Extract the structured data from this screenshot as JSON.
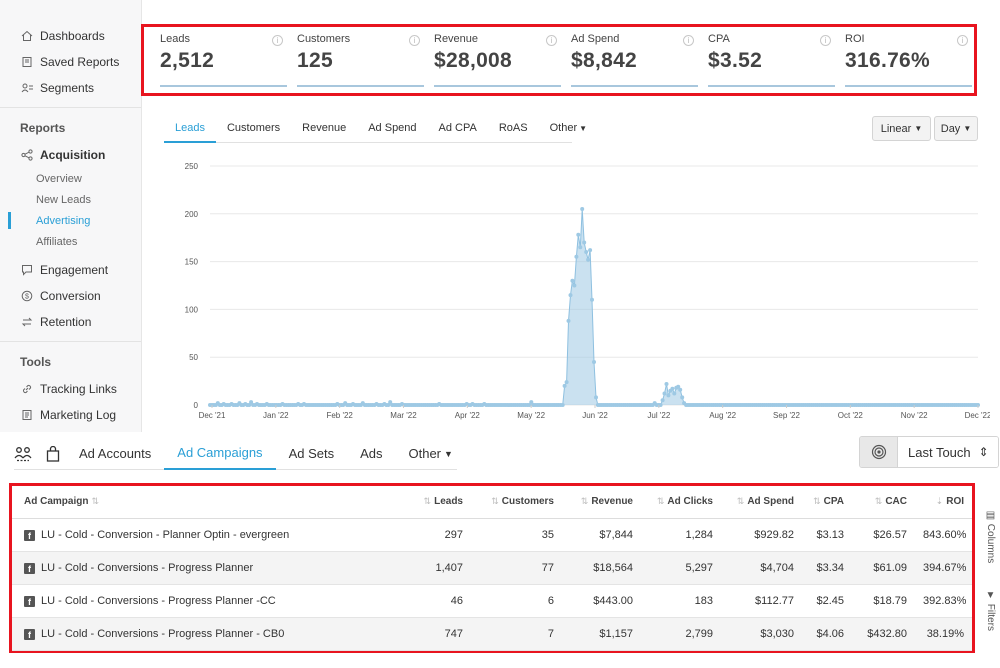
{
  "sidebar": {
    "top": [
      {
        "label": "Dashboards",
        "icon": "home-icon"
      },
      {
        "label": "Saved Reports",
        "icon": "saved-icon"
      },
      {
        "label": "Segments",
        "icon": "segments-icon"
      }
    ],
    "reports_heading": "Reports",
    "acquisition": "Acquisition",
    "acq_sub": [
      "Overview",
      "New Leads",
      "Advertising",
      "Affiliates"
    ],
    "reports_items": [
      {
        "label": "Engagement",
        "icon": "chat-icon"
      },
      {
        "label": "Conversion",
        "icon": "dollar-icon"
      },
      {
        "label": "Retention",
        "icon": "retention-icon"
      }
    ],
    "tools_heading": "Tools",
    "tools_items": [
      {
        "label": "Tracking Links",
        "icon": "link-icon"
      },
      {
        "label": "Marketing Log",
        "icon": "log-icon"
      }
    ]
  },
  "kpis": [
    {
      "label": "Leads",
      "value": "2,512"
    },
    {
      "label": "Customers",
      "value": "125"
    },
    {
      "label": "Revenue",
      "value": "$28,008"
    },
    {
      "label": "Ad Spend",
      "value": "$8,842"
    },
    {
      "label": "CPA",
      "value": "$3.52"
    },
    {
      "label": "ROI",
      "value": "316.76%"
    }
  ],
  "chart_tabs": [
    "Leads",
    "Customers",
    "Revenue",
    "Ad Spend",
    "Ad CPA",
    "RoAS",
    "Other"
  ],
  "scale_dropdown": "Linear",
  "interval_dropdown": "Day",
  "chart_data": {
    "type": "area",
    "series": [
      {
        "values": [
          0,
          0,
          0,
          0,
          2,
          0,
          0,
          1,
          0,
          0,
          0,
          1,
          0,
          0,
          0,
          2,
          0,
          0,
          1,
          0,
          0,
          3,
          0,
          0,
          1,
          0,
          0,
          0,
          0,
          1,
          0,
          0,
          0,
          0,
          0,
          0,
          0,
          1,
          0,
          0,
          0,
          0,
          0,
          0,
          0,
          1,
          0,
          0,
          1,
          0,
          0,
          0,
          0,
          0,
          0,
          0,
          0,
          0,
          0,
          0,
          0,
          0,
          0,
          0,
          0,
          1,
          0,
          0,
          0,
          2,
          0,
          0,
          0,
          1,
          0,
          0,
          0,
          0,
          2,
          0,
          0,
          0,
          0,
          0,
          0,
          1,
          0,
          0,
          0,
          1,
          0,
          0,
          3,
          0,
          0,
          0,
          0,
          0,
          1,
          0,
          0,
          0,
          0,
          0,
          0,
          0,
          0,
          0,
          0,
          0,
          0,
          0,
          0,
          0,
          0,
          0,
          0,
          1,
          0,
          0,
          0,
          0,
          0,
          0,
          0,
          0,
          0,
          0,
          0,
          0,
          0,
          1,
          0,
          0,
          1,
          0,
          0,
          0,
          0,
          0,
          1,
          0,
          0,
          0,
          0,
          0,
          0,
          0,
          0,
          0,
          0,
          0,
          0,
          0,
          0,
          0,
          0,
          0,
          0,
          0,
          0,
          0,
          0,
          0,
          3,
          0,
          0,
          0,
          0,
          0,
          0,
          0,
          0,
          0,
          0,
          0,
          0,
          0,
          0,
          0,
          0,
          20,
          24,
          88,
          115,
          130,
          125,
          155,
          178,
          165,
          205,
          170,
          160,
          152,
          162,
          110,
          45,
          8,
          0,
          0,
          0,
          0,
          0,
          0,
          0,
          0,
          0,
          0,
          0,
          0,
          0,
          0,
          0,
          0,
          0,
          0,
          0,
          0,
          0,
          0,
          0,
          0,
          0,
          0,
          0,
          0,
          0,
          2,
          0,
          0,
          0,
          5,
          12,
          22,
          10,
          15,
          17,
          12,
          18,
          19,
          16,
          8,
          2,
          0,
          0,
          0,
          0,
          0,
          0,
          0,
          0,
          0,
          0,
          0,
          0,
          0,
          0,
          0,
          0,
          0,
          0,
          0,
          0,
          0,
          0,
          0,
          0,
          0,
          0,
          0,
          0,
          0,
          0,
          0,
          0,
          0,
          0,
          0,
          0,
          0,
          0,
          0,
          0,
          0,
          0,
          0,
          0,
          0,
          0,
          0,
          0,
          0,
          0,
          0,
          0,
          0,
          0,
          0,
          0,
          0,
          0,
          0,
          0,
          0,
          0,
          0,
          0,
          0,
          0,
          0,
          0,
          0,
          0,
          0,
          0,
          0,
          0,
          0,
          0,
          0,
          0,
          0,
          0,
          0,
          0,
          0,
          0,
          0,
          0,
          0,
          0,
          0,
          0,
          0,
          0,
          0,
          0,
          0,
          0,
          0,
          0,
          0,
          0,
          0,
          0,
          0,
          0,
          0,
          0,
          0,
          0,
          0,
          0,
          0,
          0,
          0,
          0,
          0,
          0,
          0,
          0,
          0,
          0,
          0,
          0,
          0,
          0,
          0,
          0,
          0,
          0,
          0,
          0,
          0,
          0,
          0,
          0,
          0,
          0,
          0,
          0,
          0,
          0,
          0,
          0,
          0,
          0,
          0,
          0,
          0,
          0,
          0,
          0
        ]
      }
    ],
    "x_ticks": [
      "Dec '21",
      "Jan '22",
      "Feb '22",
      "Mar '22",
      "Apr '22",
      "May '22",
      "Jun '22",
      "Jul '22",
      "Aug '22",
      "Sep '22",
      "Oct '22",
      "Nov '22",
      "Dec '22"
    ],
    "y_ticks": [
      0,
      50,
      100,
      150,
      200,
      250
    ],
    "ylim": [
      0,
      250
    ],
    "grid": true,
    "color": "#9ec9e4"
  },
  "table_tabs": {
    "icons": [
      "people-icon",
      "bag-icon"
    ],
    "tabs": [
      "Ad Accounts",
      "Ad Campaigns",
      "Ad Sets",
      "Ads",
      "Other"
    ],
    "active": 1
  },
  "attribution": "Last Touch",
  "table": {
    "headers": [
      "Ad Campaign",
      "Leads",
      "Customers",
      "Revenue",
      "Ad Clicks",
      "Ad Spend",
      "CPA",
      "CAC",
      "ROI"
    ],
    "rows": [
      [
        "LU - Cold - Conversion - Planner Optin - evergreen",
        "297",
        "35",
        "$7,844",
        "1,284",
        "$929.82",
        "$3.13",
        "$26.57",
        "843.60%"
      ],
      [
        "LU - Cold - Conversions - Progress Planner",
        "1,407",
        "77",
        "$18,564",
        "5,297",
        "$4,704",
        "$3.34",
        "$61.09",
        "394.67%"
      ],
      [
        "LU - Cold - Conversions - Progress Planner -CC",
        "46",
        "6",
        "$443.00",
        "183",
        "$112.77",
        "$2.45",
        "$18.79",
        "392.83%"
      ],
      [
        "LU - Cold - Conversions - Progress Planner - CB0",
        "747",
        "7",
        "$1,157",
        "2,799",
        "$3,030",
        "$4.06",
        "$432.80",
        "38.19%"
      ]
    ]
  },
  "side_tools": {
    "columns": "Columns",
    "filters": "Filters"
  }
}
